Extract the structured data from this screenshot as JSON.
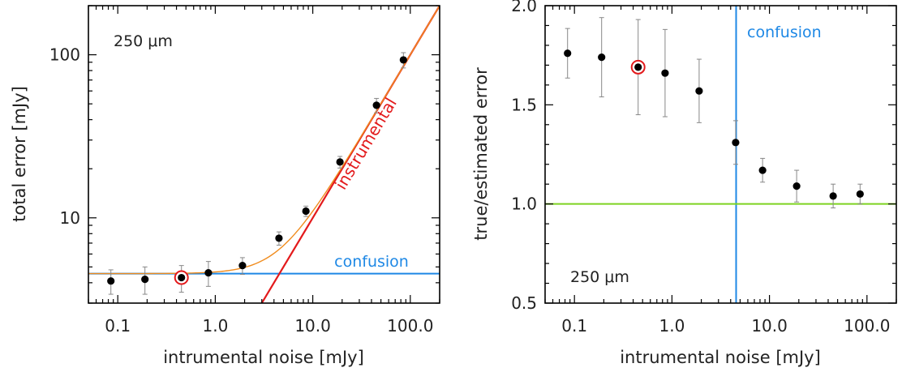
{
  "chart_data": [
    {
      "type": "scatter",
      "xlabel": "intrumental noise [mJy]",
      "ylabel": "total error [mJy]",
      "xscale": "log",
      "yscale": "log",
      "xlim": [
        0.05,
        200
      ],
      "ylim": [
        3.0,
        200
      ],
      "xticks": [
        {
          "v": 0.1,
          "label": "0.1"
        },
        {
          "v": 1,
          "label": "1.0"
        },
        {
          "v": 10,
          "label": "10.0"
        },
        {
          "v": 100,
          "label": "100.0"
        }
      ],
      "yticks": [
        {
          "v": 10,
          "label": "10"
        },
        {
          "v": 100,
          "label": "100"
        }
      ],
      "annotation": "250 μm",
      "grid": false,
      "points": {
        "x": [
          0.085,
          0.19,
          0.45,
          0.85,
          1.9,
          4.5,
          8.5,
          19,
          45,
          85
        ],
        "y": [
          4.1,
          4.2,
          4.3,
          4.6,
          5.1,
          7.5,
          11.0,
          22,
          49,
          93
        ],
        "err": [
          0.7,
          0.8,
          0.8,
          0.8,
          0.6,
          0.7,
          0.8,
          1.8,
          5,
          10
        ]
      },
      "highlight_index": 2,
      "lines": [
        {
          "name": "confusion",
          "kind": "horizontal",
          "y": 4.55,
          "color": "#1e88e5"
        },
        {
          "name": "instrumental",
          "kind": "instrumental",
          "color": "#e31a1c"
        },
        {
          "kind": "quadrature-sum",
          "color": "#f08c1e"
        }
      ]
    },
    {
      "type": "scatter",
      "xlabel": "intrumental noise [mJy]",
      "ylabel": "true/estimated error",
      "xscale": "log",
      "xlim": [
        0.05,
        200
      ],
      "ylim": [
        0.5,
        2.0
      ],
      "xticks": [
        {
          "v": 0.1,
          "label": "0.1"
        },
        {
          "v": 1,
          "label": "1.0"
        },
        {
          "v": 10,
          "label": "10.0"
        },
        {
          "v": 100,
          "label": "100.0"
        }
      ],
      "yticks": [
        {
          "v": 0.5,
          "label": "0.5"
        },
        {
          "v": 1.0,
          "label": "1.0"
        },
        {
          "v": 1.5,
          "label": "1.5"
        },
        {
          "v": 2.0,
          "label": "2.0"
        }
      ],
      "annotation": "250 μm",
      "grid": false,
      "points": {
        "x": [
          0.085,
          0.19,
          0.45,
          0.85,
          1.9,
          4.5,
          8.5,
          19,
          45,
          85
        ],
        "y": [
          1.76,
          1.74,
          1.69,
          1.66,
          1.57,
          1.31,
          1.17,
          1.09,
          1.04,
          1.05
        ],
        "err": [
          0.125,
          0.2,
          0.24,
          0.22,
          0.16,
          0.11,
          0.06,
          0.08,
          0.06,
          0.05
        ]
      },
      "highlight_index": 2,
      "lines": [
        {
          "name": "confusion",
          "kind": "vertical",
          "x": 4.55,
          "color": "#1e88e5"
        },
        {
          "kind": "horizontal",
          "y": 1.0,
          "color": "#7ed321"
        }
      ]
    }
  ]
}
